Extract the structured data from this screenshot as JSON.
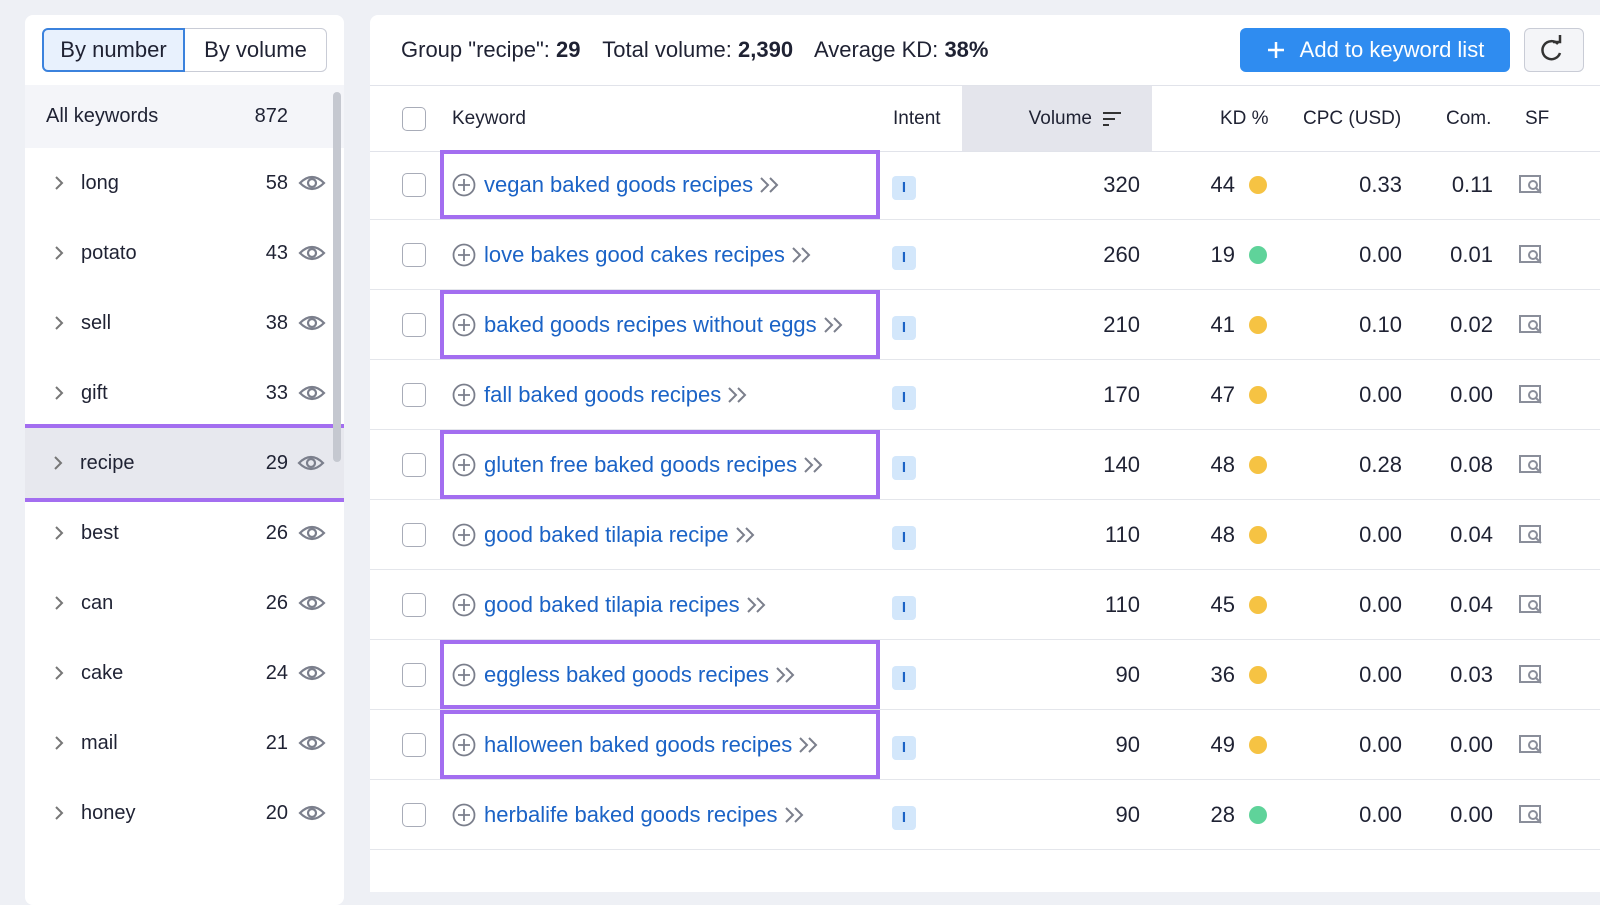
{
  "sidebar": {
    "tabs": [
      {
        "label": "By number",
        "active": true
      },
      {
        "label": "By volume",
        "active": false
      }
    ],
    "all_keywords": {
      "label": "All keywords",
      "count": "872"
    },
    "groups": [
      {
        "name": "long",
        "count": "58",
        "selected": false
      },
      {
        "name": "potato",
        "count": "43",
        "selected": false
      },
      {
        "name": "sell",
        "count": "38",
        "selected": false
      },
      {
        "name": "gift",
        "count": "33",
        "selected": false
      },
      {
        "name": "recipe",
        "count": "29",
        "selected": true
      },
      {
        "name": "best",
        "count": "26",
        "selected": false
      },
      {
        "name": "can",
        "count": "26",
        "selected": false
      },
      {
        "name": "cake",
        "count": "24",
        "selected": false
      },
      {
        "name": "mail",
        "count": "21",
        "selected": false
      },
      {
        "name": "honey",
        "count": "20",
        "selected": false
      }
    ]
  },
  "header": {
    "group_label": "Group \"recipe\":",
    "group_count": "29",
    "volume_label": "Total volume:",
    "volume": "2,390",
    "kd_label": "Average KD:",
    "kd": "38%",
    "add_button": "Add to keyword list"
  },
  "table": {
    "columns": [
      "Keyword",
      "Intent",
      "Volume",
      "KD %",
      "CPC (USD)",
      "Com.",
      "SF"
    ],
    "rows": [
      {
        "keyword": "vegan baked goods recipes",
        "intent": "I",
        "volume": "320",
        "kd": "44",
        "kd_color": "#f6c343",
        "cpc": "0.33",
        "com": "0.11",
        "highlighted": true
      },
      {
        "keyword": "love bakes good cakes recipes",
        "intent": "I",
        "volume": "260",
        "kd": "19",
        "kd_color": "#5fd39a",
        "cpc": "0.00",
        "com": "0.01",
        "highlighted": false
      },
      {
        "keyword": "baked goods recipes without eggs",
        "intent": "I",
        "volume": "210",
        "kd": "41",
        "kd_color": "#f6c343",
        "cpc": "0.10",
        "com": "0.02",
        "highlighted": true
      },
      {
        "keyword": "fall baked goods recipes",
        "intent": "I",
        "volume": "170",
        "kd": "47",
        "kd_color": "#f6c343",
        "cpc": "0.00",
        "com": "0.00",
        "highlighted": false
      },
      {
        "keyword": "gluten free baked goods recipes",
        "intent": "I",
        "volume": "140",
        "kd": "48",
        "kd_color": "#f6c343",
        "cpc": "0.28",
        "com": "0.08",
        "highlighted": true
      },
      {
        "keyword": "good baked tilapia recipe",
        "intent": "I",
        "volume": "110",
        "kd": "48",
        "kd_color": "#f6c343",
        "cpc": "0.00",
        "com": "0.04",
        "highlighted": false
      },
      {
        "keyword": "good baked tilapia recipes",
        "intent": "I",
        "volume": "110",
        "kd": "45",
        "kd_color": "#f6c343",
        "cpc": "0.00",
        "com": "0.04",
        "highlighted": false
      },
      {
        "keyword": "eggless baked goods recipes",
        "intent": "I",
        "volume": "90",
        "kd": "36",
        "kd_color": "#f6c343",
        "cpc": "0.00",
        "com": "0.03",
        "highlighted": true
      },
      {
        "keyword": "halloween baked goods recipes",
        "intent": "I",
        "volume": "90",
        "kd": "49",
        "kd_color": "#f6c343",
        "cpc": "0.00",
        "com": "0.00",
        "highlighted": true
      },
      {
        "keyword": "herbalife baked goods recipes",
        "intent": "I",
        "volume": "90",
        "kd": "28",
        "kd_color": "#5fd39a",
        "cpc": "0.00",
        "com": "0.00",
        "highlighted": false
      }
    ]
  }
}
